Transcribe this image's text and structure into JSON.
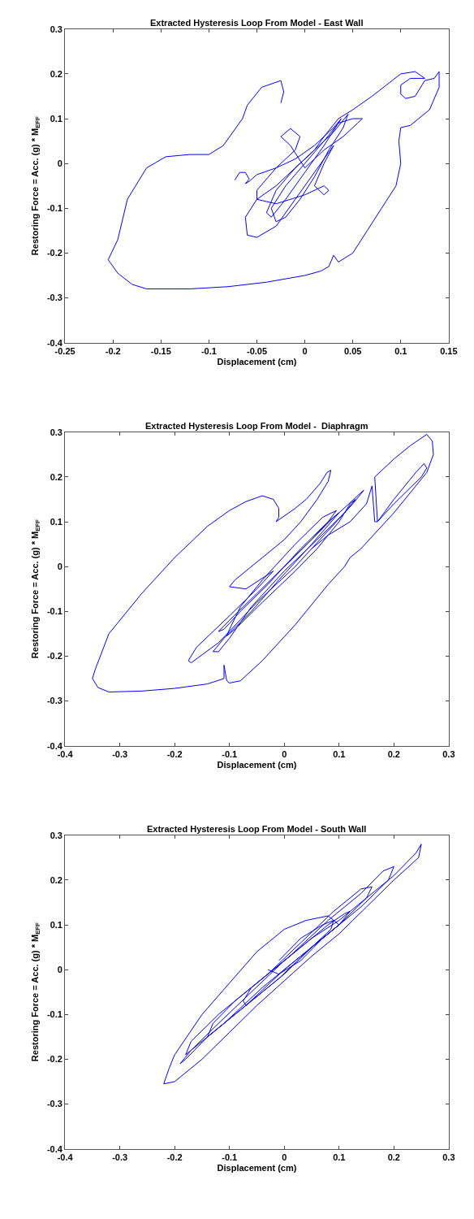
{
  "chart_data": [
    {
      "type": "line",
      "title": "Extracted Hysteresis Loop From Model - East Wall",
      "xlabel": "Displacement (cm)",
      "ylabel": "Restoring Force = Acc. (g) * M$_{EFF}$",
      "xlim": [
        -0.25,
        0.15
      ],
      "ylim": [
        -0.4,
        0.3
      ],
      "xticks": [
        -0.25,
        -0.2,
        -0.15,
        -0.1,
        -0.05,
        0,
        0.05,
        0.1,
        0.15
      ],
      "yticks": [
        -0.4,
        -0.3,
        -0.2,
        -0.1,
        0,
        0.1,
        0.2,
        0.3
      ],
      "grid": false,
      "series": [
        {
          "color": "#0000ff",
          "x": [
            -0.073,
            -0.068,
            -0.062,
            -0.058,
            -0.062,
            -0.058,
            -0.05,
            -0.03,
            -0.01,
            0.01,
            0.03,
            0.038,
            0.035,
            0.02,
            0,
            -0.02,
            -0.035,
            -0.04,
            -0.03,
            -0.01,
            0.01,
            0.03,
            0.045,
            0.04,
            0.025,
            0.01,
            -0.005,
            -0.02,
            -0.03,
            -0.035,
            -0.02,
            0,
            0.02,
            0.035,
            0.05,
            0.06,
            0.055,
            0.04,
            0.02,
            0,
            -0.015,
            -0.025,
            -0.015,
            -0.005,
            -0.01,
            -0.03,
            -0.05,
            -0.05,
            -0.03,
            0,
            0.02,
            0.025,
            0.02,
            0.01,
            0.02,
            0.03,
            0.01,
            -0.01,
            -0.03,
            -0.05,
            -0.06,
            -0.062,
            -0.05,
            -0.03,
            -0.01,
            0.01,
            0.02,
            0.035,
            0.05,
            0.07,
            0.1,
            0.115,
            0.125,
            0.11,
            0.1,
            0.1,
            0.105,
            0.115,
            0.125,
            0.135,
            0.14,
            0.14,
            0.13,
            0.11,
            0.1,
            0.098,
            0.1,
            0.095,
            0.08,
            0.065,
            0.05,
            0.035,
            0.03,
            0.025,
            0.017,
            0,
            -0.04,
            -0.08,
            -0.12,
            -0.165,
            -0.18,
            -0.195,
            -0.205,
            -0.195,
            -0.185,
            -0.165,
            -0.145,
            -0.12,
            -0.1,
            -0.085,
            -0.065,
            -0.06,
            -0.045,
            -0.025,
            -0.022,
            -0.025
          ],
          "values": [
            -0.037,
            -0.02,
            -0.02,
            -0.035,
            -0.045,
            -0.04,
            -0.025,
            -0.01,
            0.01,
            0.04,
            0.08,
            0.1,
            0.09,
            0.04,
            -0.02,
            -0.08,
            -0.12,
            -0.11,
            -0.06,
            -0.01,
            0.03,
            0.07,
            0.11,
            0.08,
            0.03,
            -0.03,
            -0.08,
            -0.12,
            -0.13,
            -0.1,
            -0.05,
            0,
            0.05,
            0.09,
            0.1,
            0.1,
            0.09,
            0.06,
            0.03,
            -0.01,
            0.04,
            0.06,
            0.078,
            0.06,
            0.03,
            -0.01,
            -0.06,
            -0.08,
            -0.09,
            -0.07,
            -0.05,
            -0.06,
            -0.07,
            -0.05,
            0,
            0.04,
            -0.02,
            -0.08,
            -0.14,
            -0.165,
            -0.16,
            -0.12,
            -0.08,
            -0.05,
            -0.01,
            0.03,
            0.06,
            0.1,
            0.12,
            0.15,
            0.2,
            0.205,
            0.19,
            0.19,
            0.175,
            0.155,
            0.145,
            0.15,
            0.185,
            0.19,
            0.205,
            0.17,
            0.12,
            0.085,
            0.08,
            0.05,
            0,
            -0.05,
            -0.1,
            -0.15,
            -0.2,
            -0.22,
            -0.205,
            -0.23,
            -0.24,
            -0.25,
            -0.265,
            -0.275,
            -0.28,
            -0.28,
            -0.27,
            -0.245,
            -0.215,
            -0.17,
            -0.08,
            -0.01,
            0.015,
            0.02,
            0.02,
            0.04,
            0.1,
            0.13,
            0.17,
            0.185,
            0.16,
            0.135
          ]
        }
      ]
    },
    {
      "type": "line",
      "title": "Extracted Hysteresis Loop From Model -  Diaphragm",
      "xlabel": "Displacement (cm)",
      "ylabel": "Restoring Force = Acc. (g) * M$_{EFF}$",
      "xlim": [
        -0.4,
        0.3
      ],
      "ylim": [
        -0.4,
        0.3
      ],
      "xticks": [
        -0.4,
        -0.3,
        -0.2,
        -0.1,
        0,
        0.1,
        0.2,
        0.3
      ],
      "yticks": [
        -0.4,
        -0.3,
        -0.2,
        -0.1,
        0,
        0.1,
        0.2,
        0.3
      ],
      "grid": false,
      "series": [
        {
          "color": "#0000ff",
          "x": [
            0,
            0.05,
            0.09,
            0.1,
            0.08,
            0.03,
            -0.03,
            -0.08,
            -0.11,
            -0.12,
            -0.1,
            -0.05,
            0,
            0.05,
            0.08,
            0.095,
            0.07,
            0.02,
            -0.04,
            -0.08,
            -0.1,
            -0.105,
            -0.09,
            -0.04,
            0.02,
            0.06,
            0.1,
            0.12,
            0.13,
            0.11,
            0.06,
            0,
            -0.06,
            -0.1,
            -0.12,
            -0.13,
            -0.11,
            -0.06,
            -0.01,
            0.05,
            0.1,
            0.14,
            0.145,
            0.125,
            0.08,
            0.02,
            -0.05,
            -0.12,
            -0.17,
            -0.175,
            -0.16,
            -0.1,
            -0.05,
            -0.02,
            -0.07,
            -0.1,
            -0.09,
            -0.065,
            -0.04,
            0,
            0.03,
            0.06,
            0.08,
            0.085,
            0.078,
            0.065,
            0.04,
            0.02,
            -0.015,
            -0.01,
            -0.01,
            -0.02,
            -0.04,
            -0.07,
            -0.1,
            -0.14,
            -0.2,
            -0.26,
            -0.32,
            -0.345,
            -0.35,
            -0.34,
            -0.32,
            -0.26,
            -0.2,
            -0.14,
            -0.11,
            -0.11,
            -0.105,
            -0.1,
            -0.08,
            -0.04,
            0.02,
            0.08,
            0.11,
            0.12,
            0.14,
            0.17,
            0.2,
            0.24,
            0.26,
            0.272,
            0.27,
            0.26,
            0.23,
            0.2,
            0.165,
            0.17,
            0.2,
            0.24,
            0.255,
            0.26,
            0.25,
            0.2,
            0.17,
            0.165,
            0.16,
            0.15,
            0.12,
            0.08,
            0.05
          ],
          "values": [
            0,
            0.06,
            0.11,
            0.12,
            0.1,
            0.04,
            -0.04,
            -0.1,
            -0.14,
            -0.145,
            -0.12,
            -0.06,
            0,
            0.06,
            0.1,
            0.125,
            0.11,
            0.05,
            -0.03,
            -0.09,
            -0.14,
            -0.155,
            -0.14,
            -0.08,
            -0.01,
            0.04,
            0.1,
            0.14,
            0.15,
            0.12,
            0.06,
            -0.01,
            -0.09,
            -0.16,
            -0.19,
            -0.19,
            -0.16,
            -0.1,
            -0.03,
            0.05,
            0.12,
            0.165,
            0.17,
            0.14,
            0.08,
            0,
            -0.08,
            -0.17,
            -0.215,
            -0.21,
            -0.18,
            -0.11,
            -0.05,
            -0.01,
            -0.05,
            -0.045,
            -0.03,
            -0.005,
            0.02,
            0.06,
            0.1,
            0.15,
            0.19,
            0.215,
            0.21,
            0.185,
            0.15,
            0.13,
            0.1,
            0.11,
            0.13,
            0.15,
            0.158,
            0.145,
            0.125,
            0.09,
            0.02,
            -0.06,
            -0.15,
            -0.23,
            -0.25,
            -0.27,
            -0.28,
            -0.278,
            -0.272,
            -0.262,
            -0.25,
            -0.22,
            -0.255,
            -0.26,
            -0.255,
            -0.21,
            -0.13,
            -0.04,
            0,
            0.02,
            0.04,
            0.08,
            0.12,
            0.18,
            0.21,
            0.25,
            0.28,
            0.295,
            0.27,
            0.24,
            0.2,
            0.1,
            0.15,
            0.21,
            0.23,
            0.22,
            0.2,
            0.14,
            0.1,
            0.1,
            0.18,
            0.14,
            0.1,
            0.07,
            0.04
          ]
        }
      ]
    },
    {
      "type": "line",
      "title": "Extracted Hysteresis Loop From Model - South Wall",
      "xlabel": "Displacement (cm)",
      "ylabel": "Restoring Force = Acc. (g) * M$_{EFF}$",
      "xlim": [
        -0.4,
        0.3
      ],
      "ylim": [
        -0.4,
        0.3
      ],
      "xticks": [
        -0.4,
        -0.3,
        -0.2,
        -0.1,
        0,
        0.1,
        0.2,
        0.3
      ],
      "yticks": [
        -0.4,
        -0.3,
        -0.2,
        -0.1,
        0,
        0.1,
        0.2,
        0.3
      ],
      "grid": false,
      "series": [
        {
          "color": "#0000ff",
          "x": [
            -0.01,
            0.03,
            0.07,
            0.09,
            0.085,
            0.05,
            0,
            -0.04,
            -0.07,
            -0.075,
            -0.06,
            -0.02,
            0.03,
            0.08,
            0.11,
            0.12,
            0.1,
            0.05,
            -0.01,
            -0.07,
            -0.12,
            -0.14,
            -0.13,
            -0.09,
            -0.03,
            0.03,
            0.09,
            0.14,
            0.16,
            0.15,
            0.1,
            0.03,
            -0.04,
            -0.11,
            -0.16,
            -0.18,
            -0.17,
            -0.12,
            -0.06,
            0.01,
            0.08,
            0.14,
            0.18,
            0.2,
            0.19,
            0.14,
            0.07,
            0,
            -0.07,
            -0.14,
            -0.18,
            -0.19,
            -0.17,
            -0.12,
            -0.06,
            0,
            0.05,
            0.1,
            0.15,
            0.2,
            0.24,
            0.25,
            0.245,
            0.2,
            0.15,
            0.1,
            0.05,
            0,
            -0.05,
            -0.1,
            -0.15,
            -0.2,
            -0.22,
            -0.21,
            -0.2,
            -0.15,
            -0.1,
            -0.05,
            0,
            0.04,
            0.08,
            0.1,
            0.07,
            0.03,
            -0.01,
            -0.03
          ],
          "values": [
            0.02,
            0.07,
            0.1,
            0.11,
            0.09,
            0.05,
            -0.01,
            -0.05,
            -0.08,
            -0.07,
            -0.04,
            0,
            0.05,
            0.1,
            0.125,
            0.13,
            0.1,
            0.05,
            -0.02,
            -0.08,
            -0.13,
            -0.15,
            -0.12,
            -0.07,
            -0.01,
            0.06,
            0.13,
            0.18,
            0.185,
            0.16,
            0.1,
            0.03,
            -0.04,
            -0.12,
            -0.17,
            -0.19,
            -0.16,
            -0.1,
            -0.04,
            0.03,
            0.11,
            0.17,
            0.22,
            0.23,
            0.2,
            0.14,
            0.07,
            0,
            -0.08,
            -0.15,
            -0.2,
            -0.21,
            -0.18,
            -0.12,
            -0.05,
            0.02,
            0.07,
            0.11,
            0.16,
            0.21,
            0.26,
            0.28,
            0.25,
            0.2,
            0.14,
            0.08,
            0.03,
            -0.025,
            -0.08,
            -0.14,
            -0.2,
            -0.25,
            -0.255,
            -0.22,
            -0.19,
            -0.1,
            -0.03,
            0.04,
            0.09,
            0.11,
            0.12,
            0.1,
            0.07,
            0.02,
            -0.01,
            0
          ]
        }
      ]
    }
  ]
}
